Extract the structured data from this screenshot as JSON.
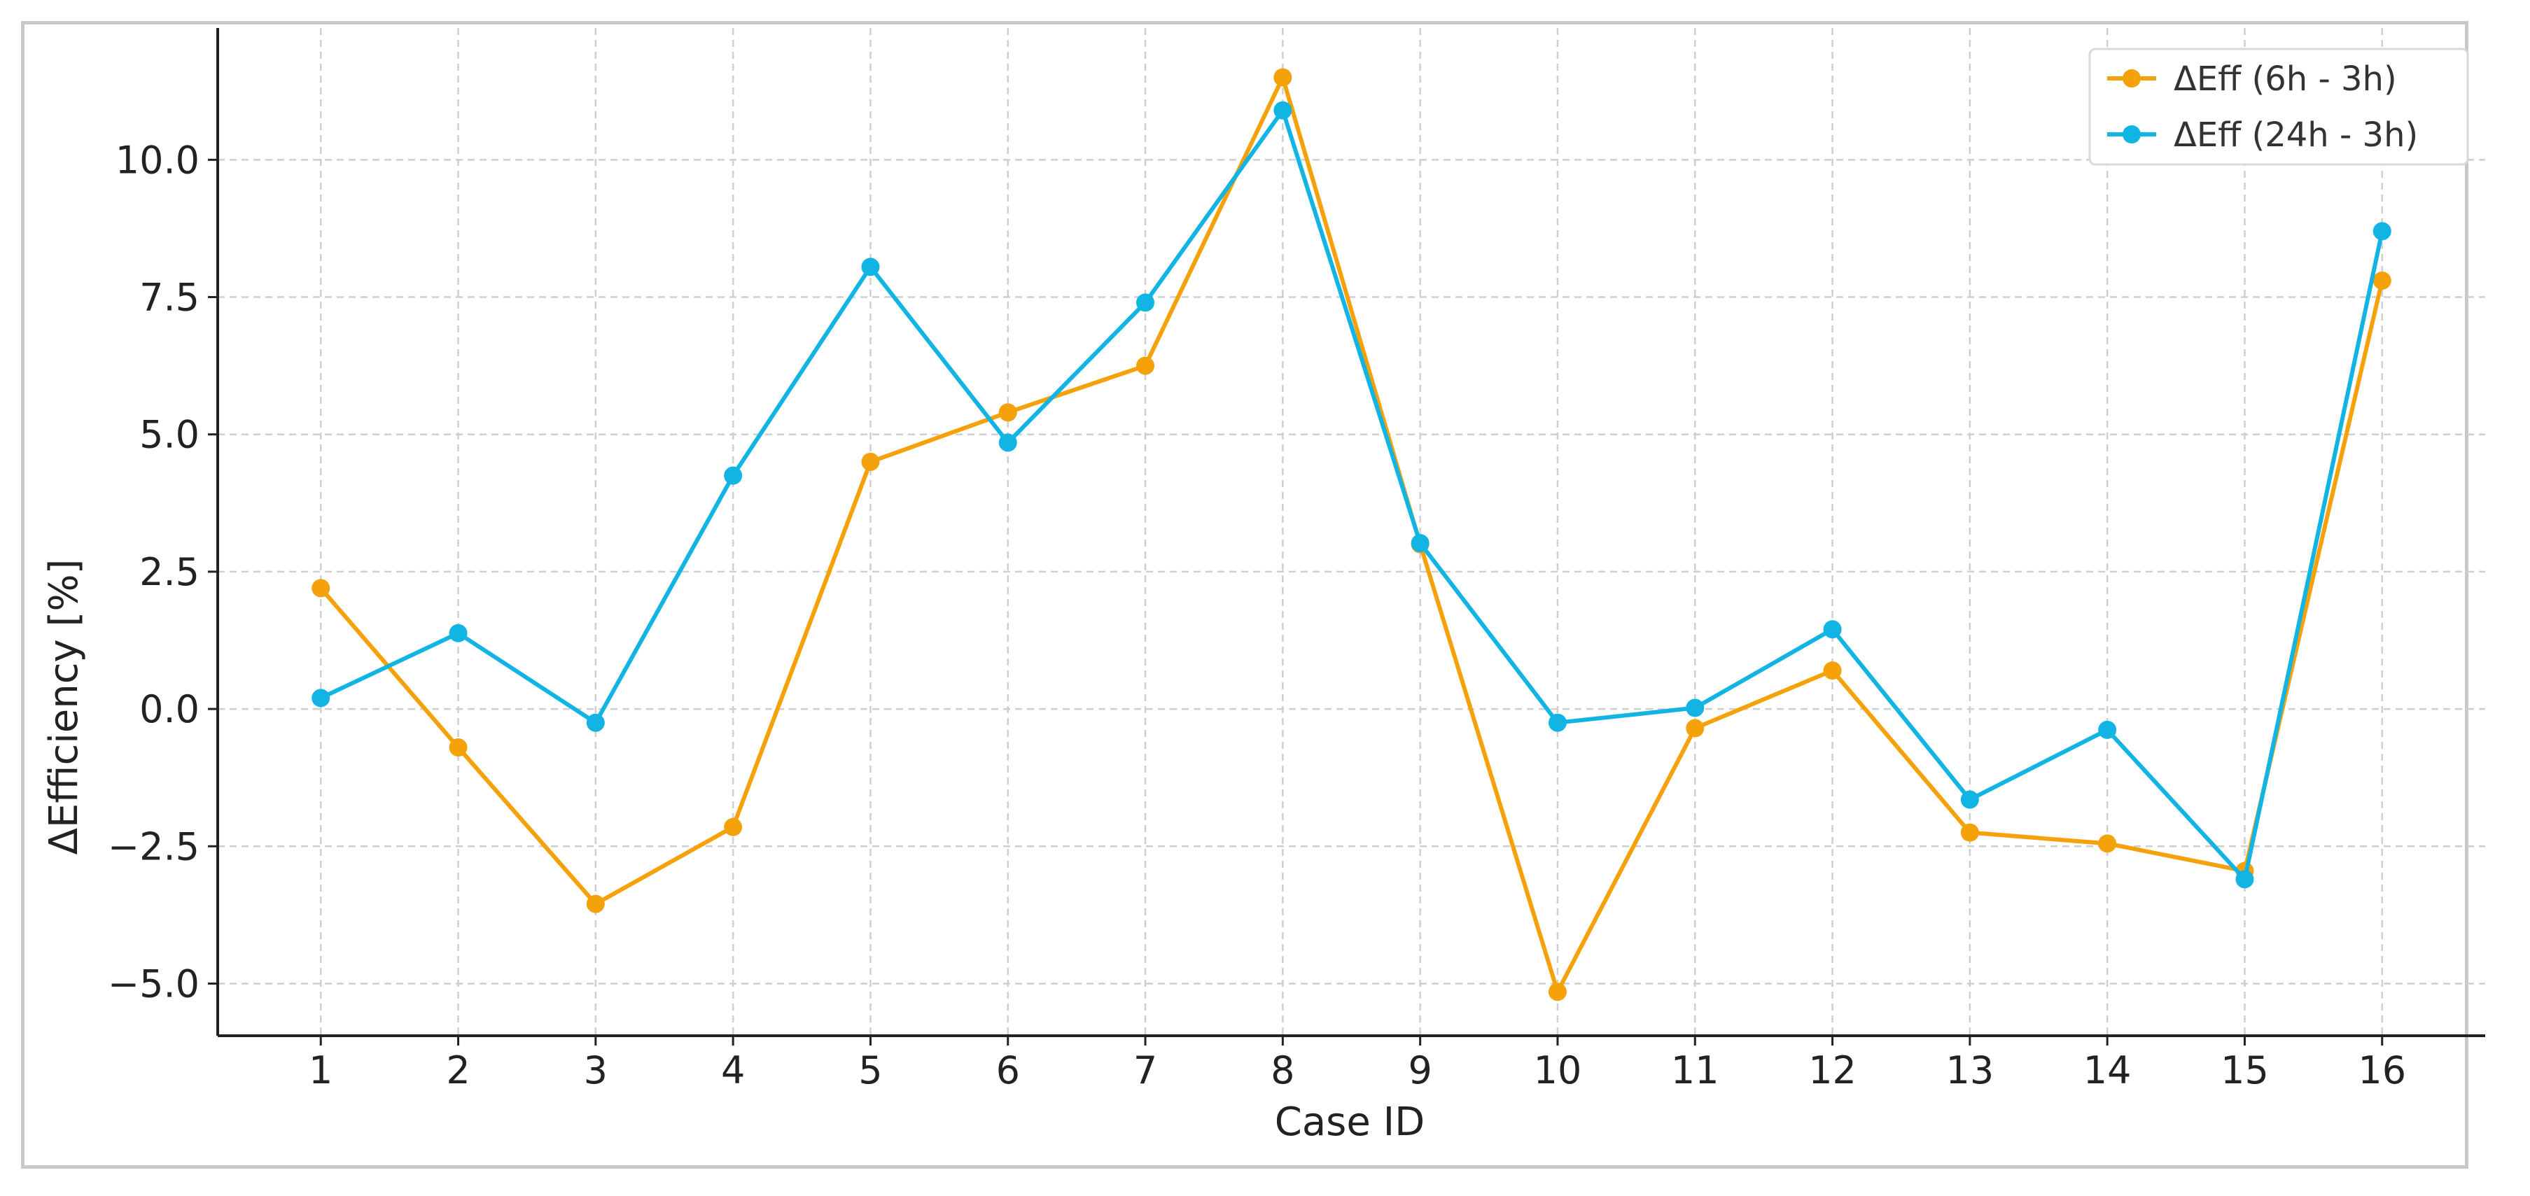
{
  "chart_data": {
    "type": "line",
    "title": "",
    "xlabel": "Case ID",
    "ylabel": "ΔEfficiency [%]",
    "x": [
      1,
      2,
      3,
      4,
      5,
      6,
      7,
      8,
      9,
      10,
      11,
      12,
      13,
      14,
      15,
      16
    ],
    "xlim": [
      0.25,
      16.75
    ],
    "ylim": [
      -5.95,
      12.4
    ],
    "yticks": [
      -5.0,
      -2.5,
      0.0,
      2.5,
      5.0,
      7.5,
      10.0
    ],
    "ytick_labels": [
      "−5.0",
      "−2.5",
      "0.0",
      "2.5",
      "5.0",
      "7.5",
      "10.0"
    ],
    "grid": true,
    "legend_position": "top-right",
    "series": [
      {
        "name": "ΔEff (6h - 3h)",
        "color": "#f5a10a",
        "values": [
          2.2,
          -0.7,
          -3.55,
          -2.15,
          4.5,
          5.4,
          6.25,
          11.5,
          3.0,
          -5.15,
          -0.35,
          0.7,
          -2.25,
          -2.45,
          -2.95,
          7.8
        ]
      },
      {
        "name": "ΔEff (24h - 3h)",
        "color": "#12b4e4",
        "values": [
          0.2,
          1.38,
          -0.25,
          4.25,
          8.05,
          4.85,
          7.4,
          10.9,
          3.02,
          -0.25,
          0.02,
          1.45,
          -1.65,
          -0.38,
          -3.1,
          8.7
        ]
      }
    ]
  }
}
